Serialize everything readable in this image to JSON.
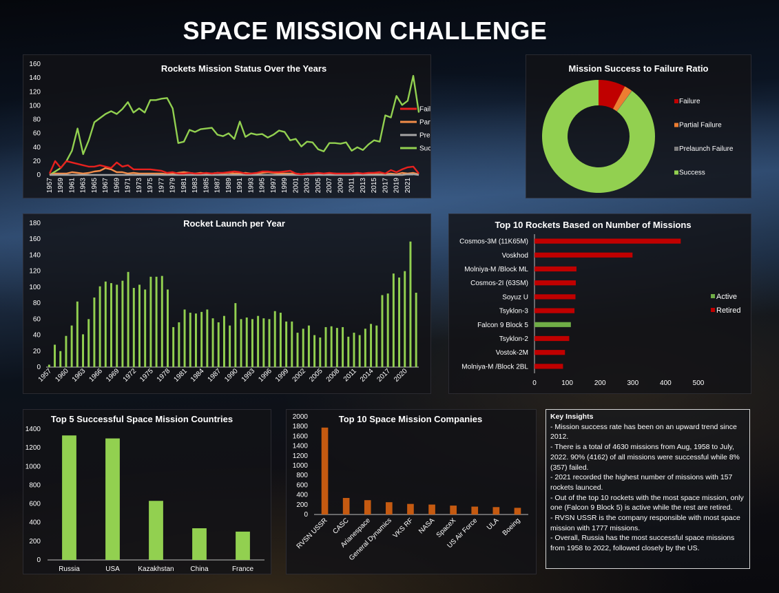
{
  "page": {
    "title": "SPACE MISSION CHALLENGE"
  },
  "status_years": [
    "1957",
    "1959",
    "1961",
    "1963",
    "1965",
    "1967",
    "1969",
    "1971",
    "1973",
    "1975",
    "1977",
    "1979",
    "1981",
    "1983",
    "1985",
    "1987",
    "1989",
    "1991",
    "1993",
    "1995",
    "1997",
    "1999",
    "2001",
    "2003",
    "2005",
    "2007",
    "2009",
    "2011",
    "2013",
    "2015",
    "2017",
    "2019",
    "2021"
  ],
  "launch_years": [
    "1957",
    "1960",
    "1963",
    "1966",
    "1969",
    "1972",
    "1975",
    "1978",
    "1981",
    "1984",
    "1987",
    "1990",
    "1993",
    "1996",
    "1999",
    "2002",
    "2005",
    "2008",
    "2011",
    "2014",
    "2017",
    "2020"
  ],
  "chart_data": [
    {
      "id": "status",
      "type": "line",
      "title": "Rockets Mission Status Over the Years",
      "x_start": 1957,
      "x_end": 2022,
      "ylim": [
        0,
        160
      ],
      "yticks": [
        "0",
        "20",
        "40",
        "60",
        "80",
        "100",
        "120",
        "140",
        "160"
      ],
      "legend_position": "right",
      "series": [
        {
          "name": "Failure",
          "color": "#e8211e",
          "values": [
            2,
            20,
            10,
            20,
            18,
            16,
            14,
            12,
            12,
            14,
            12,
            10,
            18,
            12,
            14,
            8,
            8,
            8,
            8,
            7,
            6,
            3,
            4,
            2,
            2,
            3,
            2,
            2,
            3,
            2,
            3,
            3,
            4,
            5,
            4,
            2,
            2,
            3,
            5,
            5,
            4,
            4,
            5,
            6,
            2,
            1,
            2,
            2,
            3,
            2,
            3,
            2,
            2,
            2,
            2,
            3,
            2,
            3,
            3,
            4,
            2,
            7,
            4,
            8,
            11,
            12,
            2
          ]
        },
        {
          "name": "Partial Failure",
          "color": "#f28c48",
          "values": [
            0,
            2,
            2,
            2,
            4,
            3,
            2,
            3,
            5,
            6,
            10,
            8,
            4,
            4,
            2,
            3,
            2,
            2,
            2,
            2,
            2,
            1,
            2,
            3,
            4,
            3,
            2,
            3,
            2,
            2,
            3,
            2,
            3,
            2,
            2,
            3,
            2,
            2,
            3,
            4,
            3,
            2,
            2,
            2,
            2,
            1,
            2,
            1,
            1,
            1,
            2,
            2,
            1,
            1,
            1,
            2,
            1,
            1,
            1,
            1,
            1,
            2,
            1,
            3,
            2,
            3,
            1
          ]
        },
        {
          "name": "Prelaunch Failure",
          "color": "#a5a5a5",
          "values": [
            0,
            0,
            0,
            0,
            0,
            0,
            0,
            0,
            0,
            0,
            0,
            0,
            0,
            0,
            0,
            0,
            0,
            0,
            0,
            0,
            0,
            0,
            0,
            0,
            0,
            0,
            0,
            0,
            0,
            0,
            0,
            0,
            0,
            0,
            0,
            0,
            0,
            0,
            0,
            0,
            0,
            0,
            0,
            0,
            0,
            0,
            0,
            0,
            0,
            0,
            0,
            0,
            0,
            0,
            0,
            0,
            0,
            0,
            0,
            0,
            0,
            0,
            0,
            0,
            1,
            1,
            0
          ]
        },
        {
          "name": "Success",
          "color": "#92d050",
          "values": [
            0,
            5,
            10,
            20,
            35,
            67,
            30,
            50,
            76,
            82,
            88,
            92,
            88,
            95,
            105,
            90,
            96,
            90,
            108,
            108,
            110,
            111,
            96,
            46,
            48,
            65,
            62,
            66,
            67,
            68,
            58,
            56,
            60,
            52,
            77,
            55,
            60,
            58,
            59,
            54,
            58,
            64,
            62,
            50,
            52,
            41,
            48,
            47,
            37,
            34,
            46,
            46,
            45,
            47,
            35,
            40,
            36,
            44,
            50,
            48,
            86,
            83,
            114,
            101,
            107,
            143,
            90
          ]
        }
      ]
    },
    {
      "id": "ratio",
      "type": "pie",
      "title": "Mission Success to Failure Ratio",
      "legend_position": "right",
      "slices": [
        {
          "name": "Failure",
          "value": 357,
          "color": "#c00000"
        },
        {
          "name": "Partial Failure",
          "value": 107,
          "color": "#ed7d31"
        },
        {
          "name": "Prelaunch Failure",
          "value": 4,
          "color": "#7f7f7f"
        },
        {
          "name": "Success",
          "value": 4162,
          "color": "#92d050"
        }
      ]
    },
    {
      "id": "launches",
      "type": "bar",
      "title": "Rocket Launch per Year",
      "x_start": 1957,
      "x_end": 2022,
      "ylim": [
        0,
        180
      ],
      "yticks": [
        "0",
        "20",
        "40",
        "60",
        "80",
        "100",
        "120",
        "140",
        "160",
        "180"
      ],
      "color": "#92d050",
      "values": [
        3,
        28,
        20,
        39,
        52,
        82,
        41,
        60,
        87,
        101,
        107,
        105,
        103,
        108,
        119,
        99,
        103,
        97,
        113,
        113,
        114,
        97,
        50,
        56,
        72,
        68,
        67,
        69,
        72,
        61,
        56,
        64,
        52,
        80,
        60,
        62,
        60,
        64,
        61,
        60,
        70,
        68,
        57,
        57,
        43,
        48,
        52,
        40,
        37,
        50,
        51,
        49,
        50,
        38,
        43,
        40,
        48,
        54,
        52,
        90,
        92,
        117,
        112,
        120,
        157,
        93
      ]
    },
    {
      "id": "rockets",
      "type": "bar",
      "orientation": "horizontal",
      "title": "Top 10 Rockets Based on Number of Missions",
      "xlim": [
        0,
        500
      ],
      "xticks": [
        "0",
        "100",
        "200",
        "300",
        "400",
        "500"
      ],
      "legend": [
        {
          "name": "Active",
          "color": "#70ad47"
        },
        {
          "name": "Retired",
          "color": "#c00000"
        }
      ],
      "categories": [
        "Cosmos-3M (11K65M)",
        "Voskhod",
        "Molniya-M /Block ML",
        "Cosmos-2I (63SM)",
        "Soyuz U",
        "Tsyklon-3",
        "Falcon 9 Block 5",
        "Tsyklon-2",
        "Vostok-2M",
        "Molniya-M /Block 2BL"
      ],
      "values": [
        446,
        299,
        128,
        126,
        125,
        122,
        111,
        106,
        93,
        87
      ],
      "status": [
        "Retired",
        "Retired",
        "Retired",
        "Retired",
        "Retired",
        "Retired",
        "Active",
        "Retired",
        "Retired",
        "Retired"
      ]
    },
    {
      "id": "countries",
      "type": "bar",
      "title": "Top 5 Successful Space Mission Countries",
      "ylim": [
        0,
        1400
      ],
      "yticks": [
        "0",
        "200",
        "400",
        "600",
        "800",
        "1000",
        "1200",
        "1400"
      ],
      "color": "#92d050",
      "categories": [
        "Russia",
        "USA",
        "Kazakhstan",
        "China",
        "France"
      ],
      "values": [
        1332,
        1300,
        632,
        339,
        303
      ]
    },
    {
      "id": "companies",
      "type": "bar",
      "title": "Top 10 Space Mission Companies",
      "ylim": [
        0,
        2000
      ],
      "yticks": [
        "0",
        "200",
        "400",
        "600",
        "800",
        "1000",
        "1200",
        "1400",
        "1600",
        "1800",
        "2000"
      ],
      "color": "#c55a11",
      "categories": [
        "RVSN USSR",
        "CASC",
        "Arianespace",
        "General Dynamics",
        "VKS RF",
        "NASA",
        "SpaceX",
        "US Air Force",
        "ULA",
        "Boeing"
      ],
      "values": [
        1777,
        338,
        293,
        251,
        216,
        203,
        182,
        161,
        151,
        136
      ]
    }
  ],
  "insights": {
    "heading": "Key Insights",
    "lines": [
      "- Mission success rate has been on an upward trend since 2012.",
      "- There is a total of 4630 missions from Aug, 1958 to July, 2022. 90% (4162) of all missions were successful while 8% (357) failed.",
      "- 2021 recorded the highest number of missions with 157 rockets launced.",
      "- Out of the top 10 rockets with the most space mission, only one (Falcon 9 Block 5) is active  while the rest are retired.",
      "- RVSN USSR is the company responsible with most space mission with 1777 missions.",
      "- Overall, Russia has the most successful space missions from 1958 to 2022, followed closely by the US."
    ]
  }
}
